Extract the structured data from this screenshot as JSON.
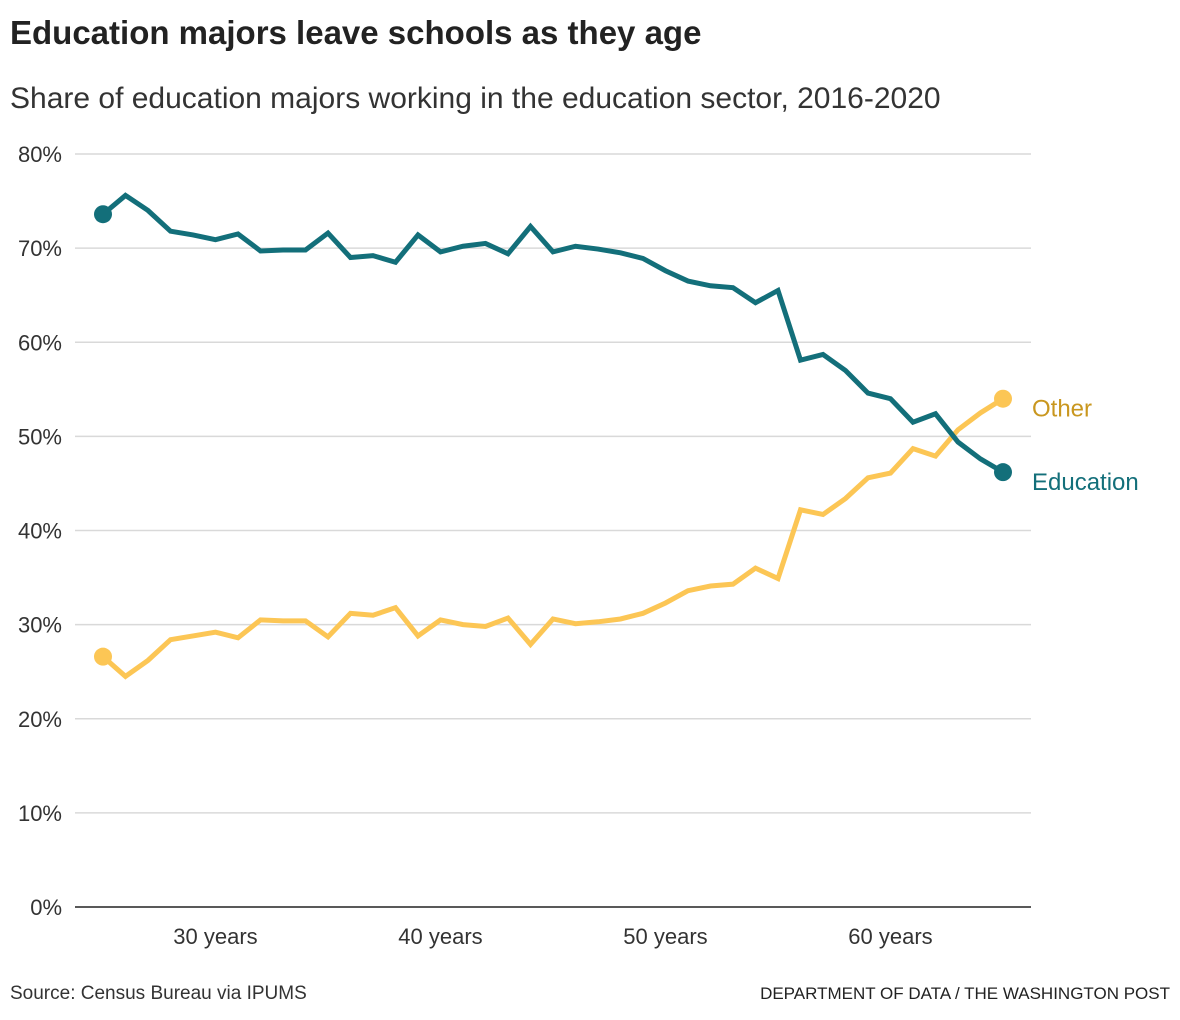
{
  "header": {
    "title": "Education majors leave schools as they age",
    "subtitle": "Share of education majors working in the education sector, 2016-2020"
  },
  "footer": {
    "source": "Source: Census Bureau via IPUMS",
    "credit": "DEPARTMENT OF DATA / THE WASHINGTON POST"
  },
  "chart_data": {
    "type": "line",
    "title": "Education majors leave schools as they age",
    "subtitle": "Share of education majors working in the education sector, 2016-2020",
    "xlabel": "",
    "ylabel": "",
    "x": [
      25,
      26,
      27,
      28,
      29,
      30,
      31,
      32,
      33,
      34,
      35,
      36,
      37,
      38,
      39,
      40,
      41,
      42,
      43,
      44,
      45,
      46,
      47,
      48,
      49,
      50,
      51,
      52,
      53,
      54,
      55,
      56,
      57,
      58,
      59,
      60,
      61,
      62,
      63,
      64,
      65
    ],
    "xlim": [
      24,
      66
    ],
    "ylim": [
      0,
      80
    ],
    "xticks": [
      {
        "value": 30,
        "label": "30 years"
      },
      {
        "value": 40,
        "label": "40 years"
      },
      {
        "value": 50,
        "label": "50 years"
      },
      {
        "value": 60,
        "label": "60 years"
      }
    ],
    "yticks": [
      {
        "value": 0,
        "label": "0%"
      },
      {
        "value": 10,
        "label": "10%"
      },
      {
        "value": 20,
        "label": "20%"
      },
      {
        "value": 30,
        "label": "30%"
      },
      {
        "value": 40,
        "label": "40%"
      },
      {
        "value": 50,
        "label": "50%"
      },
      {
        "value": 60,
        "label": "60%"
      },
      {
        "value": 70,
        "label": "70%"
      },
      {
        "value": 80,
        "label": "80%"
      }
    ],
    "grid": true,
    "legend": "inline end labels",
    "series": [
      {
        "name": "Education",
        "color": "#136f7a",
        "label_color": "#136f7a",
        "values": [
          73.6,
          75.6,
          74.0,
          71.8,
          71.4,
          70.9,
          71.5,
          69.7,
          69.8,
          69.8,
          71.6,
          69.0,
          69.2,
          68.5,
          71.4,
          69.6,
          70.2,
          70.5,
          69.4,
          72.3,
          69.6,
          70.2,
          69.9,
          69.5,
          68.9,
          67.6,
          66.5,
          66.0,
          65.8,
          64.2,
          65.5,
          58.1,
          58.7,
          57.0,
          54.6,
          54.0,
          51.5,
          52.4,
          49.4,
          47.6,
          46.2
        ]
      },
      {
        "name": "Other",
        "color": "#fcc655",
        "label_color": "#c9971f",
        "values": [
          26.6,
          24.5,
          26.2,
          28.4,
          28.8,
          29.2,
          28.6,
          30.5,
          30.4,
          30.4,
          28.7,
          31.2,
          31.0,
          31.8,
          28.8,
          30.5,
          30.0,
          29.8,
          30.7,
          27.9,
          30.6,
          30.1,
          30.3,
          30.6,
          31.2,
          32.3,
          33.6,
          34.1,
          34.3,
          36.0,
          34.9,
          42.2,
          41.7,
          43.4,
          45.6,
          46.1,
          48.7,
          47.9,
          50.7,
          52.5,
          54.0
        ]
      }
    ]
  }
}
